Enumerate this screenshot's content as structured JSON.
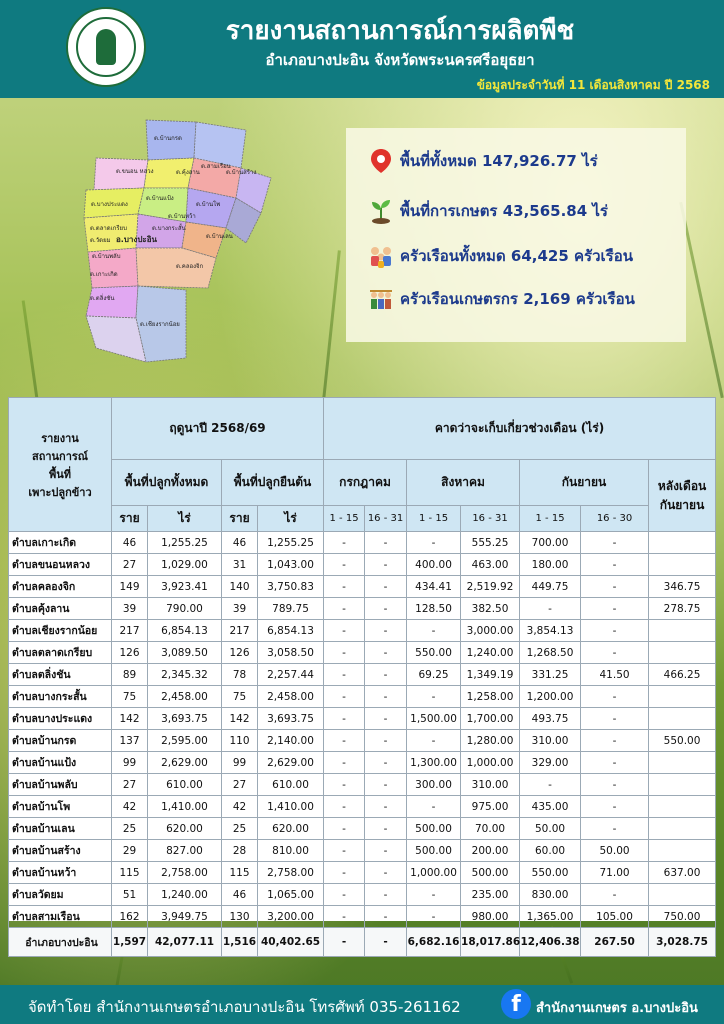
{
  "header": {
    "title": "รายงานสถานการณ์การผลิตพืช",
    "subtitle": "อำเภอบางปะอิน จังหวัดพระนครศรีอยุธยา",
    "date": "ข้อมูลประจำวันที่  11  เดือนสิงหาคม ปี 2568"
  },
  "map": {
    "district_label": "อ.บางปะอิน",
    "labels": [
      "ต.บ้านกรด",
      "ต.ขนอน หลวง",
      "ต.บางประแดง",
      "ต.ตลาดเกรียบ",
      "ต.วัดยม",
      "ต.บ้านแป้ง",
      "ต.บ้านพลับ",
      "ต.บางกระสั้น",
      "ต.คุ้งลาน",
      "ต.สามเรือน",
      "ต.บ้านสร้าง",
      "ต.บ้านโพ",
      "ต.บ้านหว้า",
      "ต.บ้านเลน",
      "ต.คลองจิก",
      "ต.เกาะเกิด",
      "ต.ตลิ่งชัน",
      "ต.เชียงรากน้อย"
    ]
  },
  "stats": [
    {
      "icon": "location-pin-icon",
      "text": "พื้นที่ทั้งหมด 147,926.77 ไร่"
    },
    {
      "icon": "sprout-icon",
      "text": "พื้นที่การเกษตร 43,565.84 ไร่"
    },
    {
      "icon": "family-icon",
      "text": "ครัวเรือนทั้งหมด 64,425 ครัวเรือน"
    },
    {
      "icon": "farmers-icon",
      "text": "ครัวเรือนเกษตรกร 2,169 ครัวเรือน"
    }
  ],
  "table": {
    "header_report": "รายงาน\nสถานการณ์\nพื้นที่\nเพาะปลูกข้าว",
    "season": "ฤดูนาปี 2568/69",
    "harvest": "คาดว่าจะเก็บเกี่ยวช่วงเดือน (ไร่)",
    "total_area": "พื้นที่ปลูกทั้งหมด",
    "standing_area": "พื้นที่ปลูกยืนต้น",
    "july": "กรกฎาคม",
    "august": "สิงหาคม",
    "september": "กันยายน",
    "after_sep": "หลังเดือน\nกันยายน",
    "rai_unit": "ราย",
    "area_unit": "ไร่",
    "p1": "1 - 15",
    "p2": "16 - 31",
    "p3": "16 - 30",
    "rows": [
      [
        "ตำบลเกาะเกิด",
        "46",
        "1,255.25",
        "46",
        "1,255.25",
        "-",
        "-",
        "-",
        "555.25",
        "700.00",
        "-",
        ""
      ],
      [
        "ตำบลขนอนหลวง",
        "27",
        "1,029.00",
        "31",
        "1,043.00",
        "-",
        "-",
        "400.00",
        "463.00",
        "180.00",
        "-",
        ""
      ],
      [
        "ตำบลคลองจิก",
        "149",
        "3,923.41",
        "140",
        "3,750.83",
        "-",
        "-",
        "434.41",
        "2,519.92",
        "449.75",
        "-",
        "346.75"
      ],
      [
        "ตำบลคุ้งลาน",
        "39",
        "790.00",
        "39",
        "789.75",
        "-",
        "-",
        "128.50",
        "382.50",
        "-",
        "-",
        "278.75"
      ],
      [
        "ตำบลเชียงรากน้อย",
        "217",
        "6,854.13",
        "217",
        "6,854.13",
        "-",
        "-",
        "-",
        "3,000.00",
        "3,854.13",
        "-",
        ""
      ],
      [
        "ตำบลตลาดเกรียบ",
        "126",
        "3,089.50",
        "126",
        "3,058.50",
        "-",
        "-",
        "550.00",
        "1,240.00",
        "1,268.50",
        "-",
        ""
      ],
      [
        "ตำบลตลิ่งชัน",
        "89",
        "2,345.32",
        "78",
        "2,257.44",
        "-",
        "-",
        "69.25",
        "1,349.19",
        "331.25",
        "41.50",
        "466.25"
      ],
      [
        "ตำบลบางกระสั้น",
        "75",
        "2,458.00",
        "75",
        "2,458.00",
        "-",
        "-",
        "-",
        "1,258.00",
        "1,200.00",
        "-",
        ""
      ],
      [
        "ตำบลบางประแดง",
        "142",
        "3,693.75",
        "142",
        "3,693.75",
        "-",
        "-",
        "1,500.00",
        "1,700.00",
        "493.75",
        "-",
        ""
      ],
      [
        "ตำบลบ้านกรด",
        "137",
        "2,595.00",
        "110",
        "2,140.00",
        "-",
        "-",
        "-",
        "1,280.00",
        "310.00",
        "-",
        "550.00"
      ],
      [
        "ตำบลบ้านแป้ง",
        "99",
        "2,629.00",
        "99",
        "2,629.00",
        "-",
        "-",
        "1,300.00",
        "1,000.00",
        "329.00",
        "-",
        ""
      ],
      [
        "ตำบลบ้านพลับ",
        "27",
        "610.00",
        "27",
        "610.00",
        "-",
        "-",
        "300.00",
        "310.00",
        "-",
        "-",
        ""
      ],
      [
        "ตำบลบ้านโพ",
        "42",
        "1,410.00",
        "42",
        "1,410.00",
        "-",
        "-",
        "-",
        "975.00",
        "435.00",
        "-",
        ""
      ],
      [
        "ตำบลบ้านเลน",
        "25",
        "620.00",
        "25",
        "620.00",
        "-",
        "-",
        "500.00",
        "70.00",
        "50.00",
        "-",
        ""
      ],
      [
        "ตำบลบ้านสร้าง",
        "29",
        "827.00",
        "28",
        "810.00",
        "-",
        "-",
        "500.00",
        "200.00",
        "60.00",
        "50.00",
        ""
      ],
      [
        "ตำบลบ้านหว้า",
        "115",
        "2,758.00",
        "115",
        "2,758.00",
        "-",
        "-",
        "1,000.00",
        "500.00",
        "550.00",
        "71.00",
        "637.00"
      ],
      [
        "ตำบลวัดยม",
        "51",
        "1,240.00",
        "46",
        "1,065.00",
        "-",
        "-",
        "-",
        "235.00",
        "830.00",
        "-",
        ""
      ],
      [
        "ตำบลสามเรือน",
        "162",
        "3,949.75",
        "130",
        "3,200.00",
        "-",
        "-",
        "-",
        "980.00",
        "1,365.00",
        "105.00",
        "750.00"
      ]
    ],
    "total": [
      "อำเภอบางปะอิน",
      "1,597",
      "42,077.11",
      "1,516",
      "40,402.65",
      "-",
      "-",
      "6,682.16",
      "18,017.86",
      "12,406.38",
      "267.50",
      "3,028.75"
    ]
  },
  "footer": {
    "credit": "จัดทำโดย  สำนักงานเกษตรอำเภอบางปะอิน  โทรศัพท์  035-261162",
    "facebook_icon": "f",
    "page_name": "สำนักงานเกษตร อ.บางปะอิน"
  }
}
